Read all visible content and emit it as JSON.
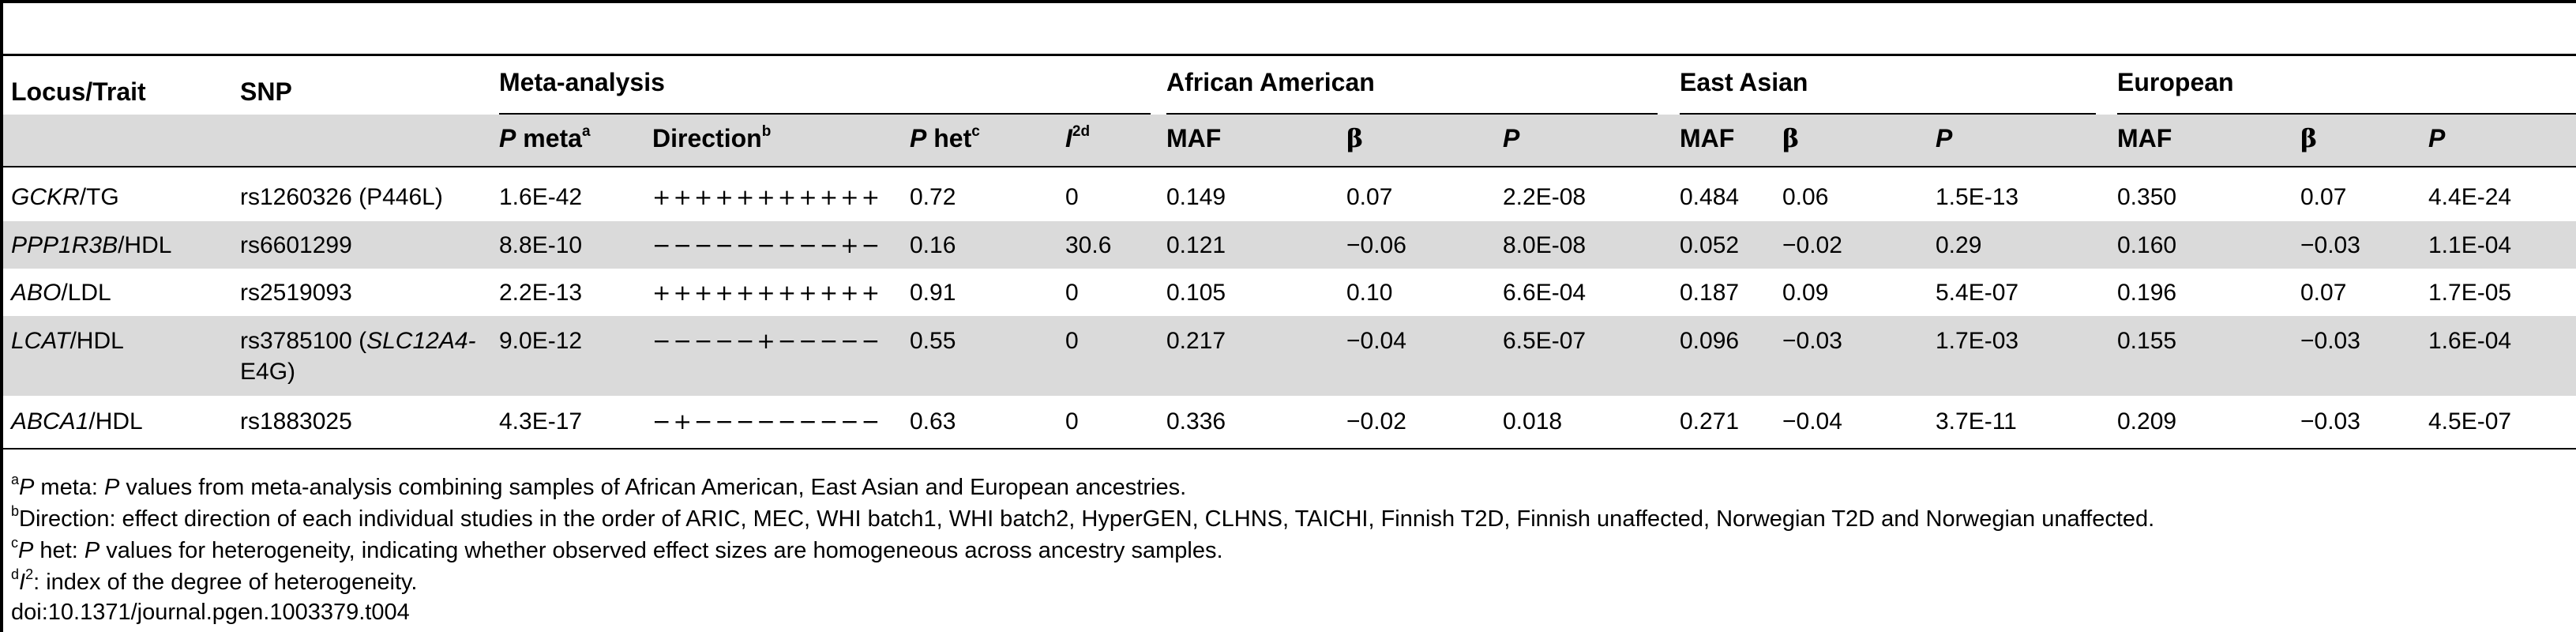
{
  "headers": {
    "locus_trait": "Locus/Trait",
    "snp": "SNP",
    "group_meta": "Meta-analysis",
    "group_african_american": "African American",
    "group_east_asian": "East Asian",
    "group_european": "European",
    "p_italic": "P",
    "meta_label": " meta",
    "meta_sup": "a",
    "direction_label": "Direction",
    "direction_sup": "b",
    "het_label": " het",
    "het_sup": "c",
    "i2_italic": "I",
    "i2_sup": "2d",
    "maf": "MAF",
    "beta": "β",
    "p": "P"
  },
  "rows": [
    {
      "locus": "GCKR",
      "trait": "/TG",
      "snp": "rs1260326 (P446L)",
      "snp_line2": "",
      "p_meta": "1.6E-42",
      "direction": "+++++++++++",
      "p_het": "0.72",
      "i2": "0",
      "aa_maf": "0.149",
      "aa_beta": "0.07",
      "aa_p": "2.2E-08",
      "ea_maf": "0.484",
      "ea_beta": "0.06",
      "ea_p": "1.5E-13",
      "eu_maf": "0.350",
      "eu_beta": "0.07",
      "eu_p": "4.4E-24"
    },
    {
      "locus": "PPP1R3B",
      "trait": "/HDL",
      "snp": "rs6601299",
      "snp_line2": "",
      "p_meta": "8.8E-10",
      "direction": "−−−−−−−−−+−",
      "p_het": "0.16",
      "i2": "30.6",
      "aa_maf": "0.121",
      "aa_beta": "−0.06",
      "aa_p": "8.0E-08",
      "ea_maf": "0.052",
      "ea_beta": "−0.02",
      "ea_p": "0.29",
      "eu_maf": "0.160",
      "eu_beta": "−0.03",
      "eu_p": "1.1E-04"
    },
    {
      "locus": "ABO",
      "trait": "/LDL",
      "snp": "rs2519093",
      "snp_line2": "",
      "p_meta": "2.2E-13",
      "direction": "+++++++++++",
      "p_het": "0.91",
      "i2": "0",
      "aa_maf": "0.105",
      "aa_beta": "0.10",
      "aa_p": "6.6E-04",
      "ea_maf": "0.187",
      "ea_beta": "0.09",
      "ea_p": "5.4E-07",
      "eu_maf": "0.196",
      "eu_beta": "0.07",
      "eu_p": "1.7E-05"
    },
    {
      "locus": "LCAT",
      "trait": "/HDL",
      "snp": "rs3785100 (",
      "snp_italic": "SLC12A4-",
      "snp_line2": "E4G)",
      "p_meta": "9.0E-12",
      "direction": "−−−−−+−−−−−",
      "p_het": "0.55",
      "i2": "0",
      "aa_maf": "0.217",
      "aa_beta": "−0.04",
      "aa_p": "6.5E-07",
      "ea_maf": "0.096",
      "ea_beta": "−0.03",
      "ea_p": "1.7E-03",
      "eu_maf": "0.155",
      "eu_beta": "−0.03",
      "eu_p": "1.6E-04"
    },
    {
      "locus": "ABCA1",
      "trait": "/HDL",
      "snp": "rs1883025",
      "snp_line2": "",
      "p_meta": "4.3E-17",
      "direction": "−+−−−−−−−−−",
      "p_het": "0.63",
      "i2": "0",
      "aa_maf": "0.336",
      "aa_beta": "−0.02",
      "aa_p": "0.018",
      "ea_maf": "0.271",
      "ea_beta": "−0.04",
      "ea_p": "3.7E-11",
      "eu_maf": "0.209",
      "eu_beta": "−0.03",
      "eu_p": "4.5E-07"
    }
  ],
  "footnotes": {
    "a_sup": "a",
    "a_italic": "P",
    "a_mid": " meta: ",
    "a_italic2": "P",
    "a_text": " values from meta-analysis combining samples of African American, East Asian and European ancestries.",
    "b_sup": "b",
    "b_text": "Direction: effect direction of each individual studies in the order of ARIC, MEC, WHI batch1, WHI batch2, HyperGEN, CLHNS, TAICHI, Finnish T2D, Finnish unaffected, Norwegian T2D and Norwegian unaffected.",
    "c_sup": "c",
    "c_italic": "P",
    "c_mid": " het: ",
    "c_italic2": "P",
    "c_text": " values for heterogeneity, indicating whether observed effect sizes are homogeneous across ancestry samples.",
    "d_sup": "d",
    "d_italic": "I",
    "d_sup2": "2",
    "d_text": ": index of the degree of heterogeneity.",
    "doi": "doi:10.1371/journal.pgen.1003379.t004"
  }
}
